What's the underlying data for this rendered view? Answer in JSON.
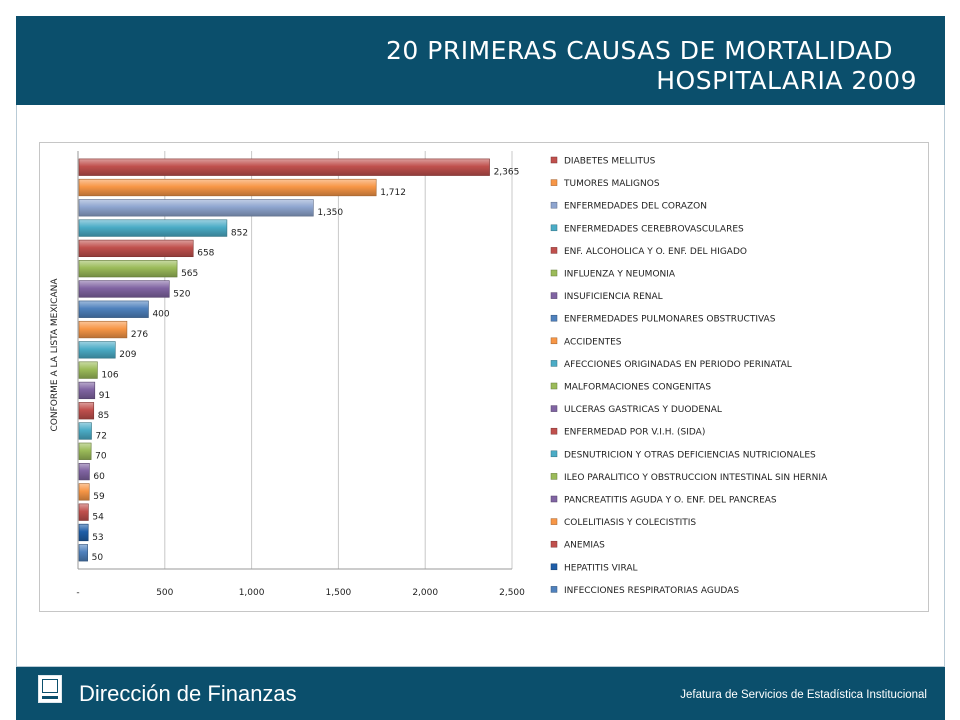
{
  "slide": {
    "title_line1": "20 PRIMERAS CAUSAS DE MORTALIDAD",
    "title_line2": "HOSPITALARIA 2009"
  },
  "footer": {
    "left_text": "Dirección de Finanzas",
    "right_text": "Jefatura de Servicios de Estadística Institucional"
  },
  "chart_data": {
    "type": "bar",
    "orientation": "horizontal",
    "title": "",
    "ylabel": "CONFORME A LA LISTA MEXICANA",
    "xlabel": "",
    "xlim": [
      0,
      2500
    ],
    "x_ticks": [
      0,
      500,
      1000,
      1500,
      2000,
      2500
    ],
    "x_tick_labels": [
      "-",
      "500",
      "1,000",
      "1,500",
      "2,000",
      "2,500"
    ],
    "grid": "vertical",
    "legend_position": "right",
    "series": [
      {
        "name": "DIABETES MELLITUS",
        "value": 2365,
        "label": "2,365",
        "color": "#c0504d"
      },
      {
        "name": "TUMORES MALIGNOS",
        "value": 1712,
        "label": "1,712",
        "color": "#f79646"
      },
      {
        "name": "ENFERMEDADES  DEL CORAZON",
        "value": 1350,
        "label": "1,350",
        "color": "#8ea5cf"
      },
      {
        "name": "ENFERMEDADES  CEREBROVASCULARES",
        "value": 852,
        "label": "852",
        "color": "#4bacc6"
      },
      {
        "name": "ENF. ALCOHOLICA Y O.  ENF. DEL HIGADO",
        "value": 658,
        "label": "658",
        "color": "#c0504d"
      },
      {
        "name": "INFLUENZA  Y NEUMONIA",
        "value": 565,
        "label": "565",
        "color": "#9bbb59"
      },
      {
        "name": "INSUFICIENCIA  RENAL",
        "value": 520,
        "label": "520",
        "color": "#8064a2"
      },
      {
        "name": "ENFERMEDADES  PULMONARES OBSTRUCTIVAS",
        "value": 400,
        "label": "400",
        "color": "#4f81bd"
      },
      {
        "name": "ACCIDENTES",
        "value": 276,
        "label": "276",
        "color": "#f79646"
      },
      {
        "name": "AFECCIONES  ORIGINADAS  EN PERIODO PERINATAL",
        "value": 209,
        "label": "209",
        "color": "#4bacc6"
      },
      {
        "name": "MALFORMACIONES CONGENITAS",
        "value": 106,
        "label": "106",
        "color": "#9bbb59"
      },
      {
        "name": "ULCERAS GASTRICAS Y DUODENAL",
        "value": 91,
        "label": "91",
        "color": "#8064a2"
      },
      {
        "name": "ENFERMEDAD  POR V.I.H.  (SIDA)",
        "value": 85,
        "label": "85",
        "color": "#c0504d"
      },
      {
        "name": "DESNUTRICION  Y OTRAS DEFICIENCIAS  NUTRICIONALES",
        "value": 72,
        "label": "72",
        "color": "#4bacc6"
      },
      {
        "name": "ILEO PARALITICO Y OBSTRUCCION  INTESTINAL  SIN HERNIA",
        "value": 70,
        "label": "70",
        "color": "#9bbb59"
      },
      {
        "name": "PANCREATITIS  AGUDA Y O.  ENF.  DEL PANCREAS",
        "value": 60,
        "label": "60",
        "color": "#8064a2"
      },
      {
        "name": "COLELITIASIS Y COLECISTITIS",
        "value": 59,
        "label": "59",
        "color": "#f79646"
      },
      {
        "name": "ANEMIAS",
        "value": 54,
        "label": "54",
        "color": "#c0504d"
      },
      {
        "name": "HEPATITIS VIRAL",
        "value": 53,
        "label": "53",
        "color": "#1f5ea8"
      },
      {
        "name": "INFECCIONES  RESPIRATORIAS AGUDAS",
        "value": 50,
        "label": "50",
        "color": "#4f81bd"
      }
    ]
  }
}
